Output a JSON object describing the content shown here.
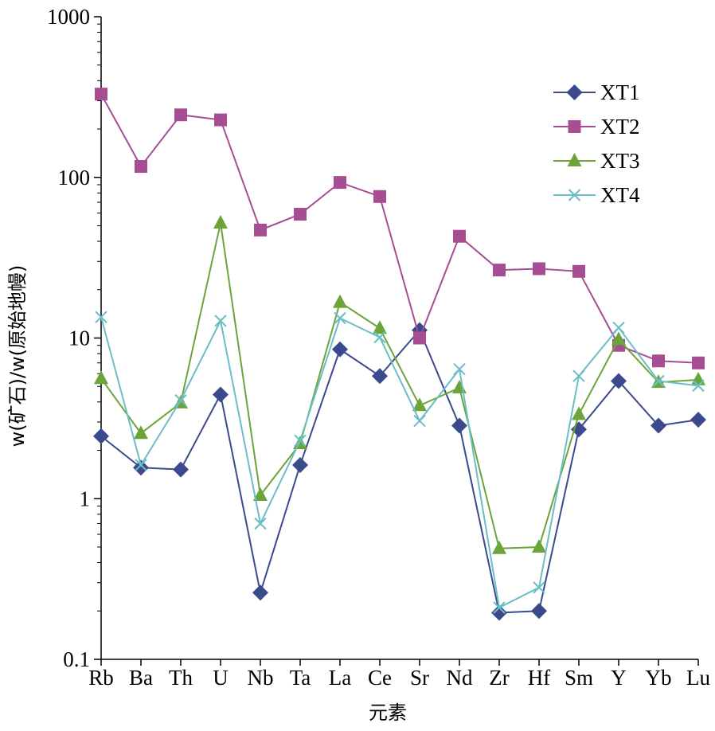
{
  "chart_data": {
    "type": "line",
    "xlabel": "元素",
    "ylabel": "w(矿石)/w(原始地幔)",
    "yscale": "log",
    "ylim": [
      0.1,
      1000
    ],
    "yticks": [
      "0.1",
      "1",
      "10",
      "100",
      "1000"
    ],
    "grid": false,
    "legend_position": "top-right",
    "categories": [
      "Rb",
      "Ba",
      "Th",
      "U",
      "Nb",
      "Ta",
      "La",
      "Ce",
      "Sr",
      "Nd",
      "Zr",
      "Hf",
      "Sm",
      "Y",
      "Yb",
      "Lu"
    ],
    "series": [
      {
        "name": "XT1",
        "color": "#3b4a8c",
        "marker": "diamond",
        "values": [
          2.45,
          1.56,
          1.52,
          4.45,
          0.26,
          1.62,
          8.5,
          5.8,
          11.2,
          2.85,
          0.195,
          0.2,
          2.7,
          5.4,
          2.85,
          3.1
        ]
      },
      {
        "name": "XT2",
        "color": "#a64d93",
        "marker": "square",
        "values": [
          330,
          117,
          245,
          228,
          47,
          59,
          93,
          76,
          10,
          43,
          26.5,
          27,
          26,
          9,
          7.2,
          7
        ]
      },
      {
        "name": "XT3",
        "color": "#6ba539",
        "marker": "triangle",
        "values": [
          5.6,
          2.55,
          3.95,
          52,
          1.05,
          2.2,
          16.7,
          11.5,
          3.8,
          4.9,
          0.49,
          0.5,
          3.35,
          9.8,
          5.3,
          5.5
        ]
      },
      {
        "name": "XT4",
        "color": "#6abfc6",
        "marker": "cross",
        "values": [
          13.5,
          1.62,
          4.1,
          12.8,
          0.7,
          2.3,
          13.3,
          10.1,
          3.05,
          6.4,
          0.21,
          0.28,
          5.8,
          11.6,
          5.4,
          5.05
        ]
      }
    ]
  }
}
